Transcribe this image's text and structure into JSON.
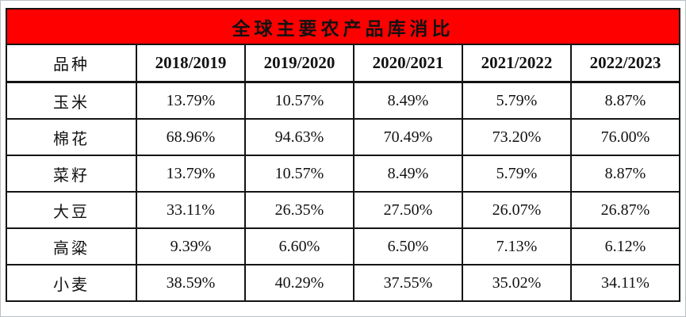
{
  "banner": {
    "title": "全球主要农产品库消比"
  },
  "colors": {
    "banner_bg": "#fe0000",
    "banner_text": "#ffffff",
    "border": "#141414",
    "text": "#121212"
  },
  "chart_data": {
    "type": "table",
    "title": "全球主要农产品库消比",
    "columns": [
      "品种",
      "2018/2019",
      "2019/2020",
      "2020/2021",
      "2021/2022",
      "2022/2023"
    ],
    "rows": [
      {
        "label": "玉米",
        "values": [
          "13.79%",
          "10.57%",
          "8.49%",
          "5.79%",
          "8.87%"
        ]
      },
      {
        "label": "棉花",
        "values": [
          "68.96%",
          "94.63%",
          "70.49%",
          "73.20%",
          "76.00%"
        ]
      },
      {
        "label": "菜籽",
        "values": [
          "13.79%",
          "10.57%",
          "8.49%",
          "5.79%",
          "8.87%"
        ]
      },
      {
        "label": "大豆",
        "values": [
          "33.11%",
          "26.35%",
          "27.50%",
          "26.07%",
          "26.87%"
        ]
      },
      {
        "label": "高粱",
        "values": [
          "9.39%",
          "6.60%",
          "6.50%",
          "7.13%",
          "6.12%"
        ]
      },
      {
        "label": "小麦",
        "values": [
          "38.59%",
          "40.29%",
          "37.55%",
          "35.02%",
          "34.11%"
        ]
      }
    ]
  }
}
